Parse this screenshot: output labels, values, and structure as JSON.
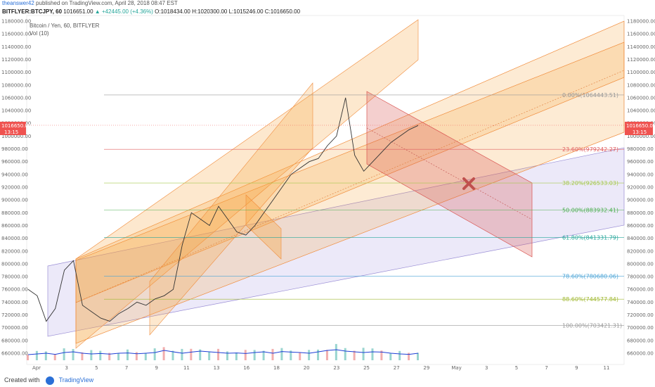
{
  "header": {
    "user": "theanswer42",
    "published_text": "published on TradingView.com, April 28, 2018 08:47 EST"
  },
  "quote": {
    "symbol": "BITFLYER:BTCJPY, 60",
    "last": "1016651.00",
    "change": "▲ +42445.00 (+4.36%)",
    "open": "O:1018434.00",
    "high": "H:1020300.00",
    "low": "L:1015246.00",
    "close": "C:1016650.00"
  },
  "legend": {
    "series_title": "Bitcoin / Yen, 60, BITFLYER",
    "indicator": "Vol (10)"
  },
  "price_tag": {
    "value": "1016650.00",
    "time": "13:15"
  },
  "colors": {
    "channel_orange": "#f7a33b",
    "channel_red": "#d9534f",
    "channel_purple": "#9b8fd6",
    "candle_up": "#26a69a",
    "candle_down": "#ef5350",
    "volume_ma": "#1e3fd6",
    "cross": "#c0504d"
  },
  "icons": {
    "cross": "x-mark-icon",
    "logo": "tradingview-logo-icon"
  },
  "footer": {
    "created_with": "Created with",
    "brand": "TradingView"
  },
  "chart_data": {
    "type": "candlestick",
    "y_axis_labels": [
      "1180000.00",
      "1160000.00",
      "1140000.00",
      "1120000.00",
      "1100000.00",
      "1080000.00",
      "1060000.00",
      "1040000.00",
      "1020000.00",
      "1000000.00",
      "980000.00",
      "960000.00",
      "940000.00",
      "920000.00",
      "900000.00",
      "880000.00",
      "860000.00",
      "840000.00",
      "820000.00",
      "800000.00",
      "780000.00",
      "760000.00",
      "740000.00",
      "720000.00",
      "700000.00",
      "680000.00",
      "660000.00"
    ],
    "y_values": [
      1180000,
      1160000,
      1140000,
      1120000,
      1100000,
      1080000,
      1060000,
      1040000,
      1020000,
      1000000,
      980000,
      960000,
      940000,
      920000,
      900000,
      880000,
      860000,
      840000,
      820000,
      800000,
      780000,
      760000,
      740000,
      720000,
      700000,
      680000,
      660000
    ],
    "x_axis_labels": [
      "Apr",
      "3",
      "5",
      "7",
      "9",
      "11",
      "13",
      "16",
      "18",
      "20",
      "23",
      "25",
      "27",
      "29",
      "May",
      "3",
      "5",
      "7",
      "9",
      "11"
    ],
    "fib_levels": [
      {
        "label": "0.00%(1064443.51)",
        "value": 1064443.51,
        "color": "#999999"
      },
      {
        "label": "23.60%(979242.27)",
        "value": 979242.27,
        "color": "#e06060"
      },
      {
        "label": "38.20%(926533.03)",
        "value": 926533.03,
        "color": "#a6c94d"
      },
      {
        "label": "50.00%(883932.41)",
        "value": 883932.41,
        "color": "#4caf50"
      },
      {
        "label": "61.80%(841331.79)",
        "value": 841331.79,
        "color": "#26a69a"
      },
      {
        "label": "78.60%(780680.06)",
        "value": 780680.06,
        "color": "#4aa3d6"
      },
      {
        "label": "88.60%(744577.84)",
        "value": 744577.84,
        "color": "#a0b830"
      },
      {
        "label": "100.00%(703421.31)",
        "value": 703421.31,
        "color": "#999999"
      }
    ],
    "price_path": [
      760000,
      750000,
      710000,
      730000,
      790000,
      805000,
      735000,
      725000,
      715000,
      710000,
      722000,
      730000,
      740000,
      735000,
      745000,
      750000,
      760000,
      830000,
      880000,
      870000,
      860000,
      890000,
      870000,
      850000,
      845000,
      860000,
      880000,
      900000,
      920000,
      940000,
      950000,
      960000,
      965000,
      985000,
      1000000,
      1060000,
      970000,
      945000,
      960000,
      975000,
      990000,
      1000000,
      1010000,
      1016650
    ],
    "volume_ma_relative": [
      0.4,
      0.45,
      0.5,
      0.42,
      0.55,
      0.6,
      0.5,
      0.45,
      0.48,
      0.44,
      0.5,
      0.52,
      0.46,
      0.5,
      0.55,
      0.7,
      0.6,
      0.5,
      0.58,
      0.65,
      0.6,
      0.55,
      0.5,
      0.52,
      0.48,
      0.55,
      0.6,
      0.5,
      0.62,
      0.58,
      0.55,
      0.5,
      0.6,
      0.7,
      0.75,
      0.65,
      0.6,
      0.55,
      0.6,
      0.58,
      0.5,
      0.45,
      0.42,
      0.5
    ]
  }
}
